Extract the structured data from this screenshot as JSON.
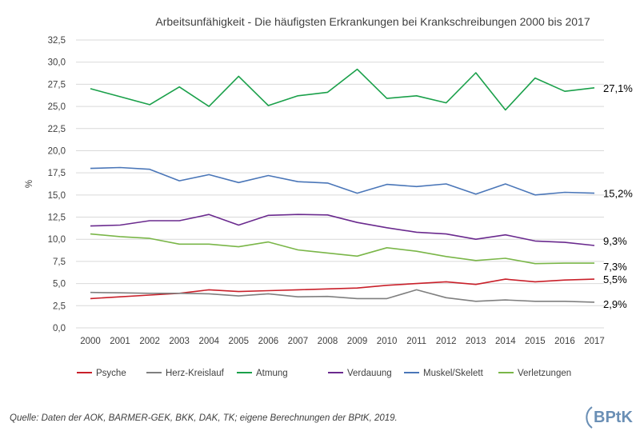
{
  "chart_data": {
    "type": "line",
    "title": "Arbeitsunfähigkeit - Die häufigsten Erkrankungen bei Krankschreibungen 2000 bis 2017",
    "xlabel": "",
    "ylabel": "%",
    "ylim": [
      0,
      32.5
    ],
    "yticks": [
      "0,0",
      "2,5",
      "5,0",
      "7,5",
      "10,0",
      "12,5",
      "15,0",
      "17,5",
      "20,0",
      "22,5",
      "25,0",
      "27,5",
      "30,0",
      "32,5"
    ],
    "x": [
      "2000",
      "2001",
      "2002",
      "2003",
      "2004",
      "2005",
      "2006",
      "2007",
      "2008",
      "2009",
      "2010",
      "2011",
      "2012",
      "2013",
      "2014",
      "2015",
      "2016",
      "2017"
    ],
    "grid": true,
    "legend_position": "bottom",
    "series": [
      {
        "name": "Psyche",
        "color": "#c9202a",
        "end_label": "5,5%",
        "values": [
          3.3,
          3.5,
          3.7,
          3.9,
          4.3,
          4.1,
          4.2,
          4.3,
          4.4,
          4.5,
          4.8,
          5.0,
          5.2,
          4.9,
          5.5,
          5.2,
          5.4,
          5.5
        ]
      },
      {
        "name": "Herz-Kreislauf",
        "color": "#7f7f7f",
        "end_label": "2,9%",
        "values": [
          4.0,
          3.95,
          3.9,
          3.9,
          3.85,
          3.6,
          3.85,
          3.5,
          3.55,
          3.3,
          3.3,
          4.3,
          3.4,
          3.0,
          3.15,
          3.0,
          3.0,
          2.9
        ]
      },
      {
        "name": "Atmung",
        "color": "#1aa04a",
        "end_label": "27,1%",
        "values": [
          27.0,
          26.1,
          25.2,
          27.2,
          25.0,
          28.4,
          25.1,
          26.2,
          26.6,
          29.2,
          25.9,
          26.2,
          25.4,
          28.8,
          24.6,
          28.2,
          26.7,
          27.1
        ]
      },
      {
        "name": "Verdauung",
        "color": "#6a2a8e",
        "end_label": "9,3%",
        "values": [
          11.5,
          11.6,
          12.1,
          12.1,
          12.8,
          11.6,
          12.7,
          12.8,
          12.75,
          11.9,
          11.3,
          10.8,
          10.6,
          10.0,
          10.5,
          9.8,
          9.65,
          9.3
        ]
      },
      {
        "name": "Muskel/Skelett",
        "color": "#4a76b8",
        "end_label": "15,2%",
        "values": [
          18.0,
          18.1,
          17.9,
          16.6,
          17.3,
          16.4,
          17.2,
          16.5,
          16.35,
          15.2,
          16.2,
          15.95,
          16.25,
          15.1,
          16.25,
          15.0,
          15.3,
          15.2
        ]
      },
      {
        "name": "Verletzungen",
        "color": "#7ab648",
        "end_label": "7,3%",
        "values": [
          10.6,
          10.3,
          10.1,
          9.45,
          9.45,
          9.15,
          9.7,
          8.8,
          8.45,
          8.1,
          9.05,
          8.65,
          8.05,
          7.6,
          7.85,
          7.25,
          7.3,
          7.3
        ]
      }
    ]
  },
  "source": "Quelle: Daten der AOK, BARMER-GEK, BKK, DAK, TK; eigene Berechnungen der BPtK, 2019.",
  "logo": {
    "text": "BPtK",
    "color": "#6a8fb5"
  }
}
